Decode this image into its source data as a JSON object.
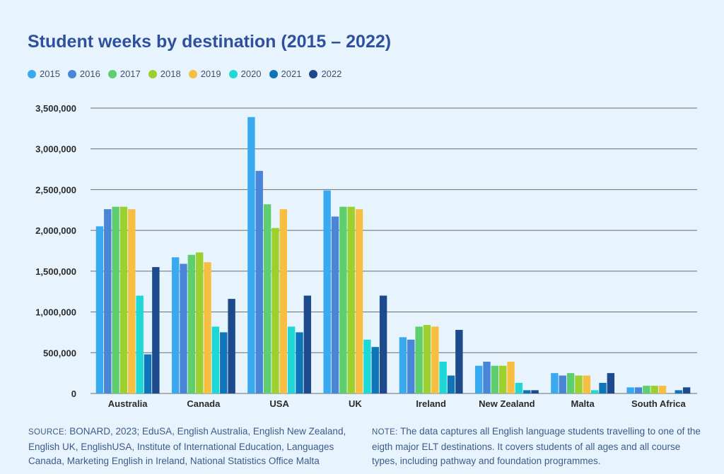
{
  "title": "Student weeks by destination (2015 – 2022)",
  "footer": {
    "source_label": "SOURCE:",
    "source_text": " BONARD, 2023; EduSA, English Australia, English New Zealand, English UK, EnglishUSA, Institute of International Education, Languages Canada, Marketing English in Ireland, National Statistics Office Malta",
    "note_label": "NOTE:",
    "note_text": " The data captures all English language students travelling to one of the eigth major ELT destinations. It covers students of all ages and all course types, including pathway and foundation programmes."
  },
  "colors": {
    "background": "#e8f4fd",
    "title": "#2f4f9f",
    "gridline": "#6b6b6b"
  },
  "chart_data": {
    "type": "bar",
    "title": "Student weeks by destination (2015 – 2022)",
    "xlabel": "",
    "ylabel": "",
    "ylim": [
      0,
      3500000
    ],
    "yticks": [
      0,
      500000,
      1000000,
      1500000,
      2000000,
      2500000,
      3000000,
      3500000
    ],
    "ytick_labels": [
      "0",
      "500,000",
      "1,000,000",
      "1,500,000",
      "2,000,000",
      "2,500,000",
      "3,000,000",
      "3,500,000"
    ],
    "grid": true,
    "legend_position": "top-left",
    "categories": [
      "Australia",
      "Canada",
      "USA",
      "UK",
      "Ireland",
      "New Zealand",
      "Malta",
      "South Africa"
    ],
    "series": [
      {
        "name": "2015",
        "color": "#3aaaf0",
        "values": [
          2050000,
          1670000,
          3390000,
          2490000,
          690000,
          340000,
          250000,
          75000
        ]
      },
      {
        "name": "2016",
        "color": "#4a86d8",
        "values": [
          2260000,
          1590000,
          2730000,
          2170000,
          660000,
          390000,
          220000,
          75000
        ]
      },
      {
        "name": "2017",
        "color": "#5fce6f",
        "values": [
          2290000,
          1700000,
          2320000,
          2290000,
          820000,
          340000,
          250000,
          95000
        ]
      },
      {
        "name": "2018",
        "color": "#9cd02f",
        "values": [
          2290000,
          1730000,
          2030000,
          2290000,
          840000,
          340000,
          220000,
          95000
        ]
      },
      {
        "name": "2019",
        "color": "#f7bf42",
        "values": [
          2260000,
          1610000,
          2260000,
          2260000,
          820000,
          390000,
          220000,
          95000
        ]
      },
      {
        "name": "2020",
        "color": "#1ed8d8",
        "values": [
          1200000,
          820000,
          820000,
          660000,
          390000,
          130000,
          40000,
          0
        ]
      },
      {
        "name": "2021",
        "color": "#0e75b8",
        "values": [
          480000,
          750000,
          750000,
          570000,
          220000,
          40000,
          130000,
          40000
        ]
      },
      {
        "name": "2022",
        "color": "#1c4a8c",
        "values": [
          1550000,
          1160000,
          1200000,
          1200000,
          780000,
          40000,
          250000,
          75000
        ]
      }
    ]
  }
}
